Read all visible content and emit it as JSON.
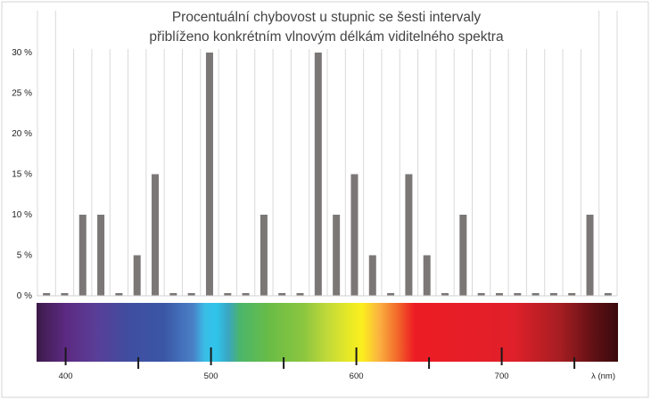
{
  "chart_data": {
    "type": "bar",
    "title": "Procentuální chybovost u stupnic se šesti intervaly",
    "subtitle": "přiblíženo konkrétním vlnovým délkám viditelného spektra",
    "ylim": [
      0,
      30
    ],
    "yticks": [
      0,
      5,
      10,
      15,
      20,
      25,
      30
    ],
    "ytick_labels": [
      "0 %",
      "5 %",
      "10 %",
      "15 %",
      "20 %",
      "25 %",
      "30 %"
    ],
    "grid": "vertical",
    "bar_color": "#7b7776",
    "values": [
      0,
      0,
      10,
      10,
      0,
      5,
      15,
      0,
      0,
      30,
      0,
      0,
      10,
      0,
      0,
      30,
      10,
      15,
      5,
      0,
      15,
      5,
      0,
      10,
      0,
      0,
      0,
      0,
      0,
      0,
      10,
      0
    ],
    "spectrum": {
      "xlim": [
        380,
        780
      ],
      "xlabel": "λ (nm)",
      "major_ticks": [
        400,
        500,
        600,
        700
      ],
      "major_labels": [
        "400",
        "500",
        "600",
        "700"
      ],
      "minor_ticks": [
        450,
        550,
        650,
        750
      ]
    }
  }
}
